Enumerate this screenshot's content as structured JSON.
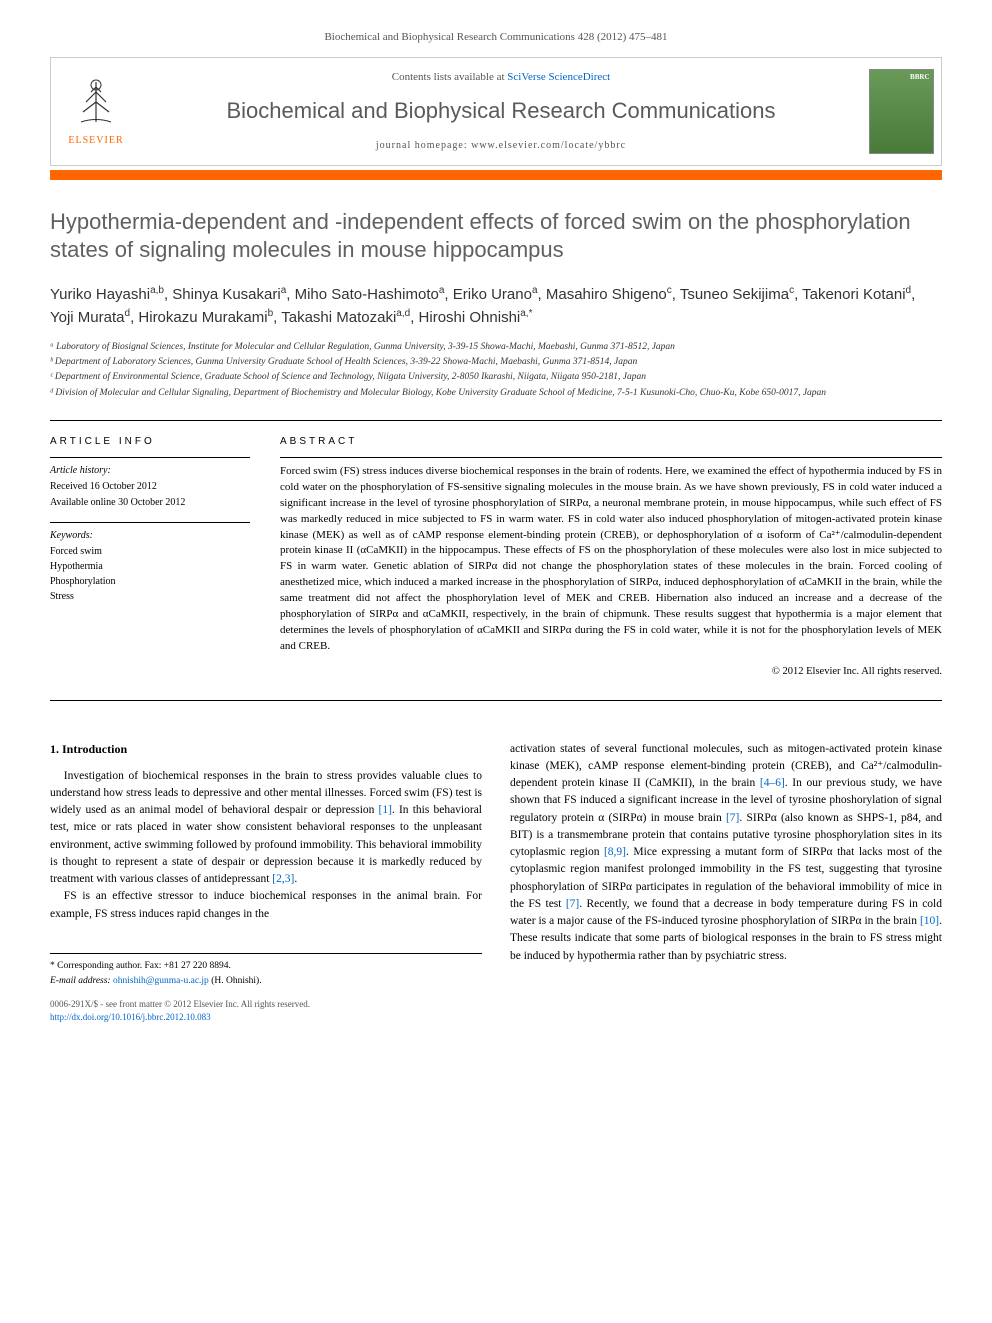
{
  "header": {
    "citation": "Biochemical and Biophysical Research Communications 428 (2012) 475–481",
    "contents_prefix": "Contents lists available at ",
    "contents_link": "SciVerse ScienceDirect",
    "journal_name": "Biochemical and Biophysical Research Communications",
    "homepage_prefix": "journal homepage: ",
    "homepage_url": "www.elsevier.com/locate/ybbrc",
    "publisher": "ELSEVIER",
    "colors": {
      "orange_bar": "#ff6600",
      "journal_name_color": "#5a5a5a",
      "link_color": "#0066cc"
    }
  },
  "article": {
    "title": "Hypothermia-dependent and -independent effects of forced swim on the phosphorylation states of signaling molecules in mouse hippocampus",
    "authors_html": "Yuriko Hayashi<sup>a,b</sup>, Shinya Kusakari<sup>a</sup>, Miho Sato-Hashimoto<sup>a</sup>, Eriko Urano<sup>a</sup>, Masahiro Shigeno<sup>c</sup>, Tsuneo Sekijima<sup>c</sup>, Takenori Kotani<sup>d</sup>, Yoji Murata<sup>d</sup>, Hirokazu Murakami<sup>b</sup>, Takashi Matozaki<sup>a,d</sup>, Hiroshi Ohnishi<sup>a,*</sup>",
    "affiliations": [
      "ᵃ Laboratory of Biosignal Sciences, Institute for Molecular and Cellular Regulation, Gunma University, 3-39-15 Showa-Machi, Maebashi, Gunma 371-8512, Japan",
      "ᵇ Department of Laboratory Sciences, Gunma University Graduate School of Health Sciences, 3-39-22 Showa-Machi, Maebashi, Gunma 371-8514, Japan",
      "ᶜ Department of Environmental Science, Graduate School of Science and Technology, Niigata University, 2-8050 Ikarashi, Niigata, Niigata 950-2181, Japan",
      "ᵈ Division of Molecular and Cellular Signaling, Department of Biochemistry and Molecular Biology, Kobe University Graduate School of Medicine, 7-5-1 Kusunoki-Cho, Chuo-Ku, Kobe 650-0017, Japan"
    ]
  },
  "info": {
    "heading": "ARTICLE INFO",
    "history_label": "Article history:",
    "received": "Received 16 October 2012",
    "available": "Available online 30 October 2012",
    "keywords_label": "Keywords:",
    "keywords": [
      "Forced swim",
      "Hypothermia",
      "Phosphorylation",
      "Stress"
    ]
  },
  "abstract": {
    "heading": "ABSTRACT",
    "text": "Forced swim (FS) stress induces diverse biochemical responses in the brain of rodents. Here, we examined the effect of hypothermia induced by FS in cold water on the phosphorylation of FS-sensitive signaling molecules in the mouse brain. As we have shown previously, FS in cold water induced a significant increase in the level of tyrosine phosphorylation of SIRPα, a neuronal membrane protein, in mouse hippocampus, while such effect of FS was markedly reduced in mice subjected to FS in warm water. FS in cold water also induced phosphorylation of mitogen-activated protein kinase kinase (MEK) as well as of cAMP response element-binding protein (CREB), or dephosphorylation of α isoform of Ca²⁺/calmodulin-dependent protein kinase II (αCaMKII) in the hippocampus. These effects of FS on the phosphorylation of these molecules were also lost in mice subjected to FS in warm water. Genetic ablation of SIRPα did not change the phosphorylation states of these molecules in the brain. Forced cooling of anesthetized mice, which induced a marked increase in the phosphorylation of SIRPα, induced dephosphorylation of αCaMKII in the brain, while the same treatment did not affect the phosphorylation level of MEK and CREB. Hibernation also induced an increase and a decrease of the phosphorylation of SIRPα and αCaMKII, respectively, in the brain of chipmunk. These results suggest that hypothermia is a major element that determines the levels of phosphorylation of αCaMKII and SIRPα during the FS in cold water, while it is not for the phosphorylation levels of MEK and CREB.",
    "copyright": "© 2012 Elsevier Inc. All rights reserved."
  },
  "body": {
    "section_heading": "1. Introduction",
    "col1_p1": "Investigation of biochemical responses in the brain to stress provides valuable clues to understand how stress leads to depressive and other mental illnesses. Forced swim (FS) test is widely used as an animal model of behavioral despair or depression [1]. In this behavioral test, mice or rats placed in water show consistent behavioral responses to the unpleasant environment, active swimming followed by profound immobility. This behavioral immobility is thought to represent a state of despair or depression because it is markedly reduced by treatment with various classes of antidepressant [2,3].",
    "col1_p2": "FS is an effective stressor to induce biochemical responses in the animal brain. For example, FS stress induces rapid changes in the",
    "col2_p1": "activation states of several functional molecules, such as mitogen-activated protein kinase kinase (MEK), cAMP response element-binding protein (CREB), and Ca²⁺/calmodulin-dependent protein kinase II (CaMKII), in the brain [4–6]. In our previous study, we have shown that FS induced a significant increase in the level of tyrosine phoshorylation of signal regulatory protein α (SIRPα) in mouse brain [7]. SIRPα (also known as SHPS-1, p84, and BIT) is a transmembrane protein that contains putative tyrosine phosphorylation sites in its cytoplasmic region [8,9]. Mice expressing a mutant form of SIRPα that lacks most of the cytoplasmic region manifest prolonged immobility in the FS test, suggesting that tyrosine phosphorylation of SIRPα participates in regulation of the behavioral immobility of mice in the FS test [7]. Recently, we found that a decrease in body temperature during FS in cold water is a major cause of the FS-induced tyrosine phosphorylation of SIRPα in the brain [10]. These results indicate that some parts of biological responses in the brain to FS stress might be induced by hypothermia rather than by psychiatric stress."
  },
  "footer": {
    "corresponding": "* Corresponding author. Fax: +81 27 220 8894.",
    "email_label": "E-mail address:",
    "email": "ohnishih@gunma-u.ac.jp",
    "email_name": "(H. Ohnishi).",
    "issn_line": "0006-291X/$ - see front matter © 2012 Elsevier Inc. All rights reserved.",
    "doi": "http://dx.doi.org/10.1016/j.bbrc.2012.10.083"
  }
}
